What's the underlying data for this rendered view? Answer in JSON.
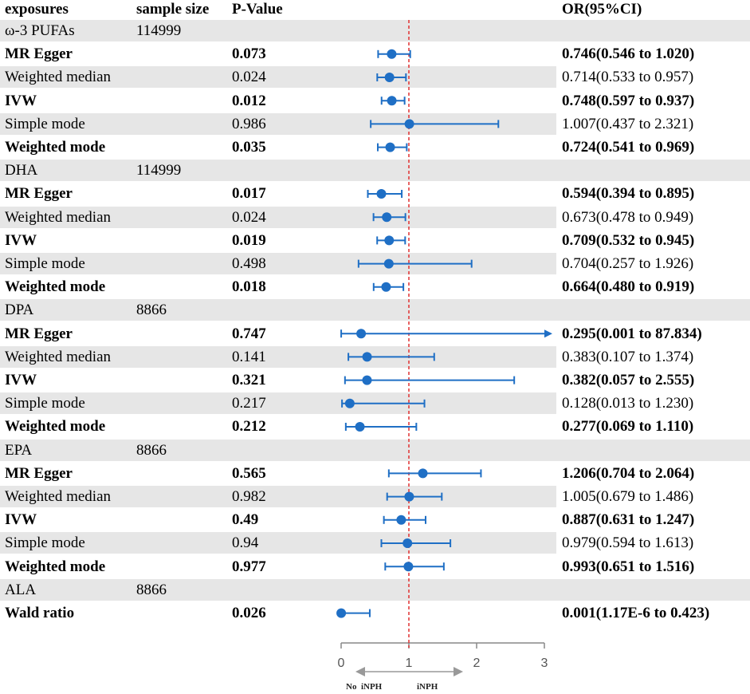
{
  "headers": {
    "exposure": "exposures",
    "sample_size": "sample size",
    "p_value": "P-Value",
    "or_ci": "OR(95%CI)"
  },
  "rows": [
    {
      "type": "group",
      "label": "ω-3 PUFAs",
      "sample_size": "114999"
    },
    {
      "type": "method",
      "label": "MR Egger",
      "p": "0.073",
      "or_text": "0.746(0.546 to 1.020)",
      "or": 0.746,
      "lo": 0.546,
      "hi": 1.02,
      "bold": true
    },
    {
      "type": "method",
      "label": "Weighted median",
      "p": "0.024",
      "or_text": "0.714(0.533 to 0.957)",
      "or": 0.714,
      "lo": 0.533,
      "hi": 0.957,
      "bold": false
    },
    {
      "type": "method",
      "label": "IVW",
      "p": "0.012",
      "or_text": "0.748(0.597 to 0.937)",
      "or": 0.748,
      "lo": 0.597,
      "hi": 0.937,
      "bold": true
    },
    {
      "type": "method",
      "label": "Simple mode",
      "p": "0.986",
      "or_text": "1.007(0.437 to 2.321)",
      "or": 1.007,
      "lo": 0.437,
      "hi": 2.321,
      "bold": false
    },
    {
      "type": "method",
      "label": "Weighted mode",
      "p": "0.035",
      "or_text": "0.724(0.541 to 0.969)",
      "or": 0.724,
      "lo": 0.541,
      "hi": 0.969,
      "bold": true
    },
    {
      "type": "group",
      "label": "DHA",
      "sample_size": "114999"
    },
    {
      "type": "method",
      "label": "MR Egger",
      "p": "0.017",
      "or_text": "0.594(0.394 to 0.895)",
      "or": 0.594,
      "lo": 0.394,
      "hi": 0.895,
      "bold": true
    },
    {
      "type": "method",
      "label": "Weighted median",
      "p": "0.024",
      "or_text": "0.673(0.478 to 0.949)",
      "or": 0.673,
      "lo": 0.478,
      "hi": 0.949,
      "bold": false
    },
    {
      "type": "method",
      "label": "IVW",
      "p": "0.019",
      "or_text": "0.709(0.532 to 0.945)",
      "or": 0.709,
      "lo": 0.532,
      "hi": 0.945,
      "bold": true
    },
    {
      "type": "method",
      "label": "Simple mode",
      "p": "0.498",
      "or_text": "0.704(0.257 to 1.926)",
      "or": 0.704,
      "lo": 0.257,
      "hi": 1.926,
      "bold": false
    },
    {
      "type": "method",
      "label": "Weighted mode",
      "p": "0.018",
      "or_text": "0.664(0.480 to 0.919)",
      "or": 0.664,
      "lo": 0.48,
      "hi": 0.919,
      "bold": true
    },
    {
      "type": "group",
      "label": "DPA",
      "sample_size": "8866"
    },
    {
      "type": "method",
      "label": "MR Egger",
      "p": "0.747",
      "or_text": "0.295(0.001 to 87.834)",
      "or": 0.295,
      "lo": 0.001,
      "hi": 87.834,
      "bold": true
    },
    {
      "type": "method",
      "label": "Weighted median",
      "p": "0.141",
      "or_text": "0.383(0.107 to 1.374)",
      "or": 0.383,
      "lo": 0.107,
      "hi": 1.374,
      "bold": false
    },
    {
      "type": "method",
      "label": "IVW",
      "p": "0.321",
      "or_text": "0.382(0.057 to 2.555)",
      "or": 0.382,
      "lo": 0.057,
      "hi": 2.555,
      "bold": true
    },
    {
      "type": "method",
      "label": "Simple mode",
      "p": "0.217",
      "or_text": "0.128(0.013 to 1.230)",
      "or": 0.128,
      "lo": 0.013,
      "hi": 1.23,
      "bold": false
    },
    {
      "type": "method",
      "label": "Weighted mode",
      "p": "0.212",
      "or_text": "0.277(0.069 to 1.110)",
      "or": 0.277,
      "lo": 0.069,
      "hi": 1.11,
      "bold": true
    },
    {
      "type": "group",
      "label": "EPA",
      "sample_size": "8866"
    },
    {
      "type": "method",
      "label": "MR Egger",
      "p": "0.565",
      "or_text": "1.206(0.704 to 2.064)",
      "or": 1.206,
      "lo": 0.704,
      "hi": 2.064,
      "bold": true
    },
    {
      "type": "method",
      "label": "Weighted median",
      "p": "0.982",
      "or_text": "1.005(0.679 to 1.486)",
      "or": 1.005,
      "lo": 0.679,
      "hi": 1.486,
      "bold": false
    },
    {
      "type": "method",
      "label": "IVW",
      "p": "0.49",
      "or_text": "0.887(0.631 to 1.247)",
      "or": 0.887,
      "lo": 0.631,
      "hi": 1.247,
      "bold": true
    },
    {
      "type": "method",
      "label": "Simple mode",
      "p": "0.94",
      "or_text": "0.979(0.594 to 1.613)",
      "or": 0.979,
      "lo": 0.594,
      "hi": 1.613,
      "bold": false
    },
    {
      "type": "method",
      "label": "Weighted mode",
      "p": "0.977",
      "or_text": "0.993(0.651 to 1.516)",
      "or": 0.993,
      "lo": 0.651,
      "hi": 1.516,
      "bold": true
    },
    {
      "type": "group",
      "label": "ALA",
      "sample_size": "8866"
    },
    {
      "type": "method",
      "label": "Wald ratio",
      "p": "0.026",
      "or_text": "0.001(1.17E-6 to 0.423)",
      "or": 0.001,
      "lo": 1.17e-06,
      "hi": 0.423,
      "bold": true
    }
  ],
  "chart_data": {
    "type": "forest",
    "x_ticks": [
      "0",
      "1",
      "2",
      "3"
    ],
    "xlim": [
      0,
      3
    ],
    "reference_line": 1,
    "left_direction_label": "No  iNPH",
    "right_direction_label": "iNPH",
    "colors": {
      "marker": "#1f6fc5",
      "reference": "#e03030",
      "axis": "#888888",
      "band": "#e6e6e6"
    }
  }
}
